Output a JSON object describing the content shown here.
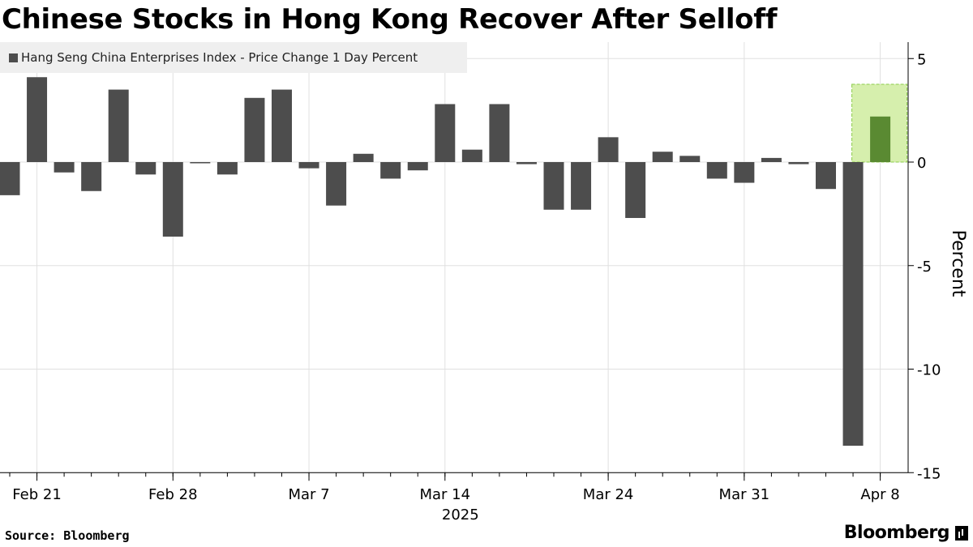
{
  "title": "Chinese Stocks in Hong Kong Recover After Selloff",
  "legend": {
    "label": "Hang Seng China Enterprises Index - Price Change 1 Day Percent"
  },
  "source": "Source: Bloomberg",
  "brand": "Bloomberg",
  "colors": {
    "bar": "#4d4d4d",
    "highlight_bar": "#5a8a32",
    "highlight_box": "#d6efad",
    "highlight_border": "#8ccc4a",
    "grid": "#e0e0e0"
  },
  "chart_data": {
    "type": "bar",
    "x": [
      "2025-02-20",
      "2025-02-21",
      "2025-02-24",
      "2025-02-25",
      "2025-02-26",
      "2025-02-27",
      "2025-02-28",
      "2025-03-03",
      "2025-03-04",
      "2025-03-05",
      "2025-03-06",
      "2025-03-07",
      "2025-03-10",
      "2025-03-11",
      "2025-03-12",
      "2025-03-13",
      "2025-03-14",
      "2025-03-17",
      "2025-03-18",
      "2025-03-19",
      "2025-03-20",
      "2025-03-21",
      "2025-03-24",
      "2025-03-25",
      "2025-03-26",
      "2025-03-27",
      "2025-03-28",
      "2025-03-31",
      "2025-04-01",
      "2025-04-02",
      "2025-04-03",
      "2025-04-07",
      "2025-04-08"
    ],
    "values": [
      -1.6,
      4.1,
      -0.5,
      -1.4,
      3.5,
      -0.6,
      -3.6,
      0.0,
      -0.6,
      3.1,
      3.5,
      -0.3,
      -2.1,
      0.4,
      -0.8,
      -0.4,
      2.8,
      0.6,
      2.8,
      -0.1,
      -2.3,
      -2.3,
      1.2,
      -2.7,
      0.5,
      0.3,
      -0.8,
      -1.0,
      0.2,
      -0.1,
      -1.3,
      -13.7,
      2.2
    ],
    "highlighted_index": 32,
    "x_tick_labels": [
      {
        "label": "Feb 21",
        "date": "2025-02-21"
      },
      {
        "label": "Feb 28",
        "date": "2025-02-28"
      },
      {
        "label": "Mar 7",
        "date": "2025-03-07"
      },
      {
        "label": "Mar 14",
        "date": "2025-03-14"
      },
      {
        "label": "Mar 24",
        "date": "2025-03-24"
      },
      {
        "label": "Mar 31",
        "date": "2025-03-31"
      },
      {
        "label": "Apr 8",
        "date": "2025-04-08"
      }
    ],
    "year_label": "2025",
    "ylabel": "Percent",
    "y_ticks": [
      5,
      0,
      -5,
      -10,
      -15
    ],
    "ylim": [
      -15,
      5
    ],
    "grid": true,
    "legend_position": "top-left",
    "y_axis_position": "right"
  }
}
